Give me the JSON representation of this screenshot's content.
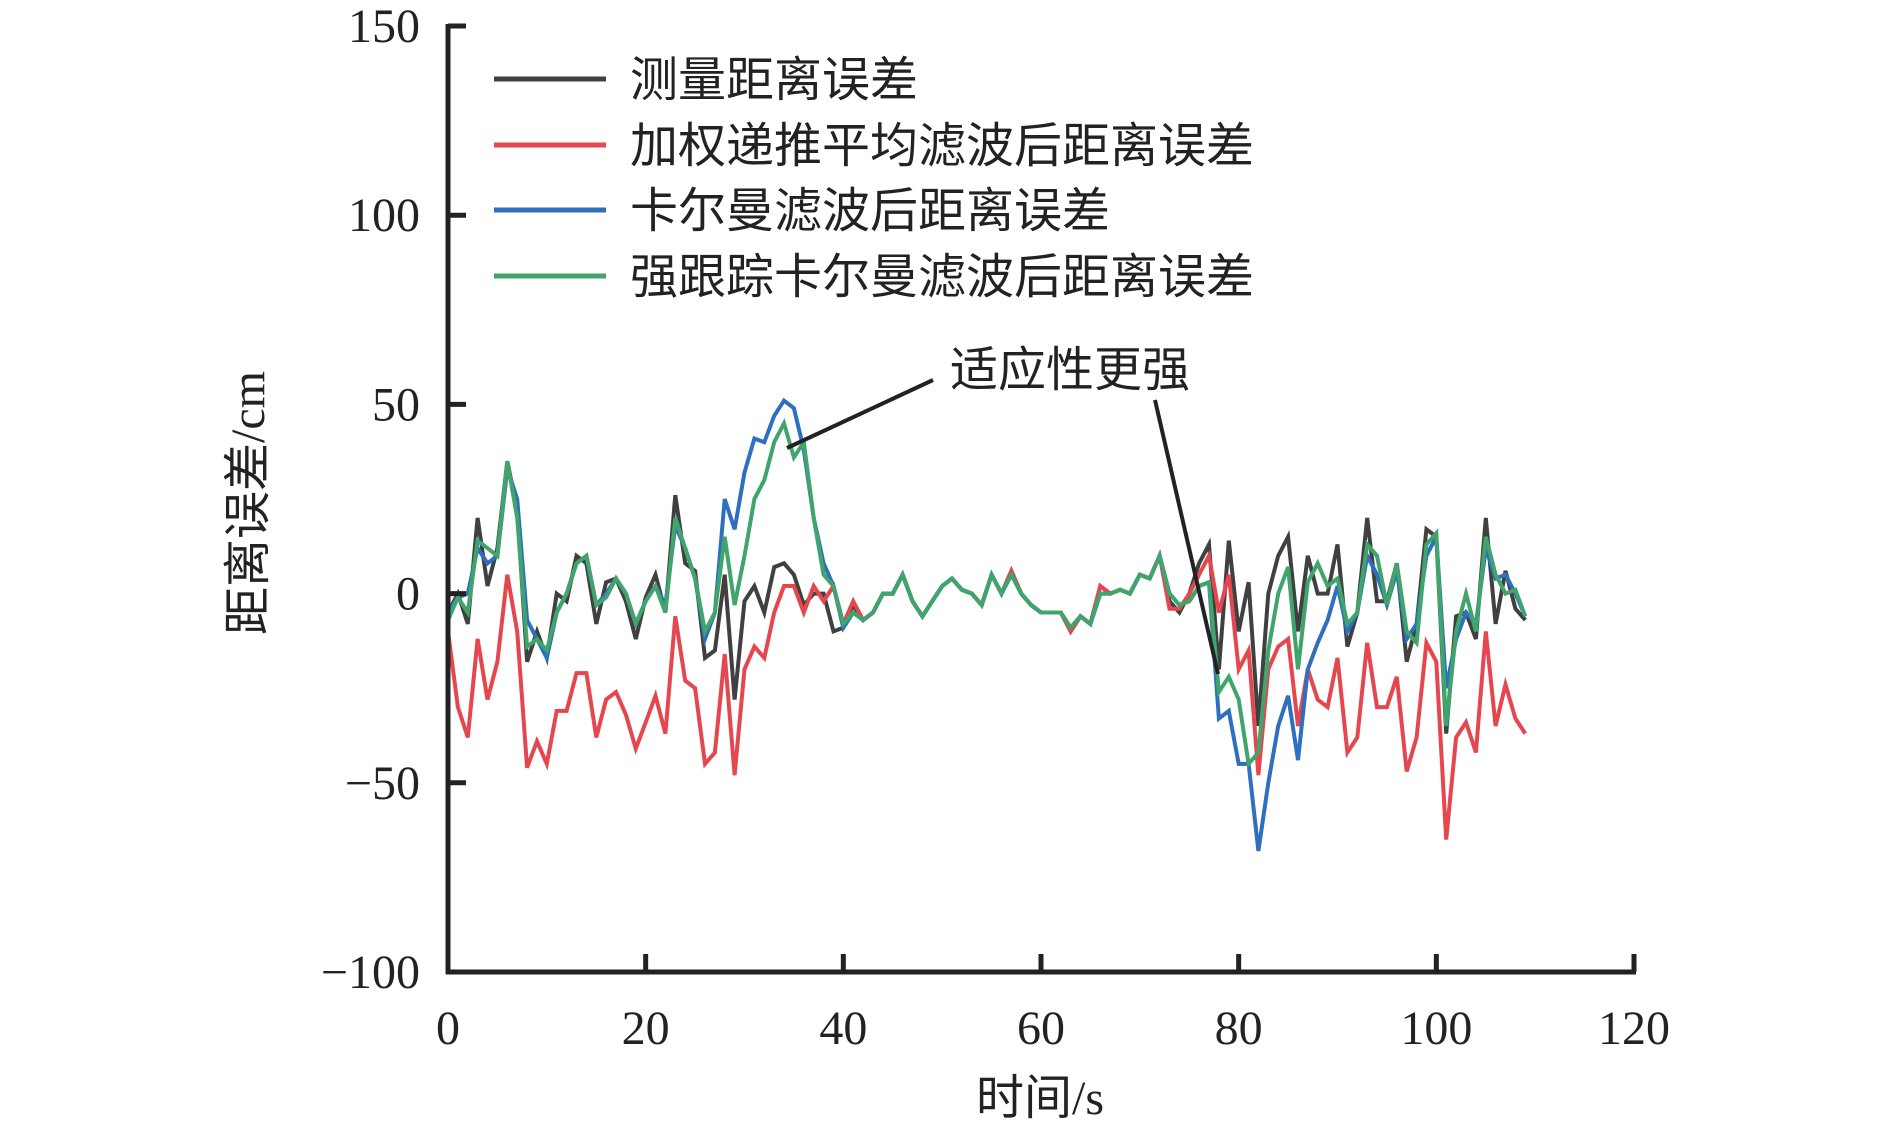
{
  "chart_data": {
    "type": "line",
    "title": "",
    "xlabel": "时间/s",
    "ylabel": "距离误差/cm",
    "xlim": [
      0,
      120
    ],
    "ylim": [
      -100,
      150
    ],
    "xticks": [
      0,
      20,
      40,
      60,
      80,
      100,
      120
    ],
    "yticks": [
      -100,
      -50,
      0,
      50,
      100,
      150
    ],
    "xtick_labels": [
      "0",
      "20",
      "40",
      "60",
      "80",
      "100",
      "120"
    ],
    "ytick_labels": [
      "−100",
      "−50",
      "0",
      "50",
      "100",
      "150"
    ],
    "grid": false,
    "legend_position": "top-left",
    "annotation": "适应性更强",
    "x_start": 0,
    "x_step": 1,
    "series": [
      {
        "name": "测量距离误差",
        "color": "#404040",
        "values": [
          -5,
          0,
          -8,
          20,
          2,
          12,
          35,
          22,
          -18,
          -10,
          -17,
          0,
          -2,
          10,
          8,
          -8,
          3,
          4,
          -2,
          -12,
          -1,
          5,
          -5,
          26,
          8,
          6,
          -17,
          -15,
          5,
          -28,
          -2,
          2,
          -5,
          7,
          8,
          5,
          -3,
          0,
          0,
          -10,
          -9,
          -3,
          -7,
          -5,
          0,
          0,
          5,
          -2,
          -6,
          -2,
          2,
          4,
          1,
          0,
          -3,
          5,
          0,
          6,
          0,
          -3,
          -5,
          -5,
          -5,
          -10,
          -6,
          -8,
          2,
          0,
          1,
          0,
          5,
          4,
          10,
          -2,
          -5,
          0,
          8,
          13,
          -20,
          14,
          -10,
          3,
          -35,
          0,
          10,
          15,
          -10,
          10,
          0,
          0,
          13,
          -14,
          -5,
          20,
          -2,
          -2,
          8,
          -18,
          -8,
          17,
          15,
          -37,
          -6,
          -5,
          -12,
          20,
          -8,
          6,
          -4,
          -7
        ]
      },
      {
        "name": "加权递推平均滤波后距离误差",
        "color": "#e5474f",
        "values": [
          -10,
          -30,
          -38,
          -12,
          -28,
          -18,
          5,
          -10,
          -46,
          -39,
          -45,
          -31,
          -31,
          -21,
          -21,
          -38,
          -28,
          -26,
          -32,
          -41,
          -34,
          -27,
          -37,
          -6,
          -23,
          -25,
          -45,
          -42,
          -16,
          -48,
          -20,
          -14,
          -17,
          -5,
          2,
          2,
          -5,
          2,
          -2,
          2,
          -8,
          -2,
          -7,
          -5,
          0,
          0,
          5,
          -2,
          -6,
          -2,
          2,
          4,
          1,
          0,
          -3,
          5,
          0,
          6,
          0,
          -3,
          -5,
          -5,
          -5,
          -10,
          -6,
          -8,
          2,
          0,
          1,
          0,
          5,
          4,
          10,
          -4,
          -4,
          0,
          5,
          10,
          -5,
          5,
          -20,
          -15,
          -48,
          -20,
          -14,
          -12,
          -35,
          -20,
          -28,
          -30,
          -17,
          -42,
          -38,
          -13,
          -30,
          -30,
          -22,
          -47,
          -38,
          -13,
          -18,
          -65,
          -38,
          -34,
          -42,
          -10,
          -35,
          -24,
          -33,
          -37
        ]
      },
      {
        "name": "卡尔曼滤波后距离误差",
        "color": "#2f6fbf",
        "values": [
          -5,
          -1,
          0,
          12,
          8,
          10,
          33,
          25,
          -7,
          -12,
          -17,
          -5,
          0,
          8,
          10,
          -3,
          0,
          4,
          0,
          -8,
          -2,
          2,
          -3,
          18,
          12,
          4,
          -12,
          -5,
          25,
          17,
          32,
          41,
          40,
          47,
          51,
          49,
          38,
          20,
          8,
          2,
          -9,
          -5,
          -7,
          -5,
          0,
          0,
          5,
          -2,
          -6,
          -2,
          2,
          4,
          1,
          0,
          -3,
          5,
          0,
          5,
          0,
          -3,
          -5,
          -5,
          -5,
          -9,
          -6,
          -8,
          0,
          0,
          1,
          0,
          5,
          4,
          10,
          0,
          -3,
          -2,
          2,
          3,
          -33,
          -31,
          -45,
          -45,
          -68,
          -50,
          -35,
          -27,
          -44,
          -20,
          -13,
          -7,
          2,
          -10,
          -5,
          10,
          5,
          -3,
          6,
          -12,
          -8,
          10,
          15,
          -25,
          -12,
          -5,
          -8,
          12,
          4,
          5,
          0,
          -6
        ]
      },
      {
        "name": "强跟踪卡尔曼滤波后距离误差",
        "color": "#3fa56b",
        "values": [
          -7,
          -1,
          -5,
          14,
          12,
          10,
          35,
          20,
          -14,
          -12,
          -15,
          -5,
          0,
          8,
          10,
          -3,
          -1,
          4,
          0,
          -8,
          -2,
          2,
          -5,
          20,
          12,
          4,
          -10,
          -5,
          15,
          -3,
          10,
          25,
          30,
          40,
          45,
          36,
          40,
          20,
          5,
          2,
          -8,
          -5,
          -7,
          -5,
          0,
          0,
          5,
          -2,
          -6,
          -2,
          2,
          4,
          1,
          0,
          -3,
          5,
          0,
          5,
          0,
          -3,
          -5,
          -5,
          -5,
          -9,
          -6,
          -8,
          0,
          0,
          1,
          0,
          5,
          4,
          10,
          0,
          -3,
          -2,
          2,
          3,
          -26,
          -22,
          -28,
          -45,
          -42,
          -15,
          0,
          7,
          -20,
          3,
          8,
          2,
          4,
          -8,
          -5,
          13,
          10,
          -3,
          8,
          -10,
          -13,
          13,
          16,
          -35,
          -10,
          0,
          -10,
          15,
          5,
          0,
          1,
          -6
        ]
      }
    ]
  }
}
